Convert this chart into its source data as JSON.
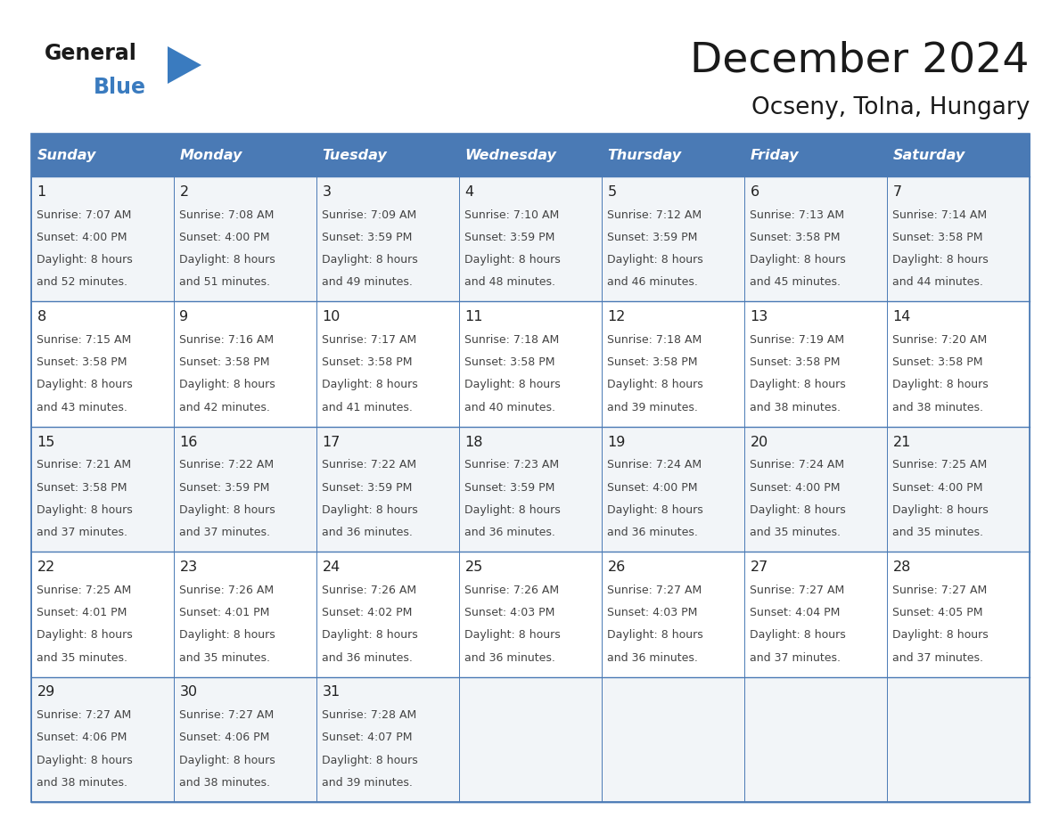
{
  "title": "December 2024",
  "subtitle": "Ocseny, Tolna, Hungary",
  "header_color": "#4a7ab5",
  "header_text_color": "#ffffff",
  "border_color": "#4a7ab5",
  "row_border_color": "#4a7ab5",
  "cell_bg_even": "#f2f5f8",
  "cell_bg_odd": "#ffffff",
  "days_of_week": [
    "Sunday",
    "Monday",
    "Tuesday",
    "Wednesday",
    "Thursday",
    "Friday",
    "Saturday"
  ],
  "weeks": [
    [
      {
        "day": 1,
        "sunrise": "7:07 AM",
        "sunset": "4:00 PM",
        "daylight_l1": "Daylight: 8 hours",
        "daylight_l2": "and 52 minutes."
      },
      {
        "day": 2,
        "sunrise": "7:08 AM",
        "sunset": "4:00 PM",
        "daylight_l1": "Daylight: 8 hours",
        "daylight_l2": "and 51 minutes."
      },
      {
        "day": 3,
        "sunrise": "7:09 AM",
        "sunset": "3:59 PM",
        "daylight_l1": "Daylight: 8 hours",
        "daylight_l2": "and 49 minutes."
      },
      {
        "day": 4,
        "sunrise": "7:10 AM",
        "sunset": "3:59 PM",
        "daylight_l1": "Daylight: 8 hours",
        "daylight_l2": "and 48 minutes."
      },
      {
        "day": 5,
        "sunrise": "7:12 AM",
        "sunset": "3:59 PM",
        "daylight_l1": "Daylight: 8 hours",
        "daylight_l2": "and 46 minutes."
      },
      {
        "day": 6,
        "sunrise": "7:13 AM",
        "sunset": "3:58 PM",
        "daylight_l1": "Daylight: 8 hours",
        "daylight_l2": "and 45 minutes."
      },
      {
        "day": 7,
        "sunrise": "7:14 AM",
        "sunset": "3:58 PM",
        "daylight_l1": "Daylight: 8 hours",
        "daylight_l2": "and 44 minutes."
      }
    ],
    [
      {
        "day": 8,
        "sunrise": "7:15 AM",
        "sunset": "3:58 PM",
        "daylight_l1": "Daylight: 8 hours",
        "daylight_l2": "and 43 minutes."
      },
      {
        "day": 9,
        "sunrise": "7:16 AM",
        "sunset": "3:58 PM",
        "daylight_l1": "Daylight: 8 hours",
        "daylight_l2": "and 42 minutes."
      },
      {
        "day": 10,
        "sunrise": "7:17 AM",
        "sunset": "3:58 PM",
        "daylight_l1": "Daylight: 8 hours",
        "daylight_l2": "and 41 minutes."
      },
      {
        "day": 11,
        "sunrise": "7:18 AM",
        "sunset": "3:58 PM",
        "daylight_l1": "Daylight: 8 hours",
        "daylight_l2": "and 40 minutes."
      },
      {
        "day": 12,
        "sunrise": "7:18 AM",
        "sunset": "3:58 PM",
        "daylight_l1": "Daylight: 8 hours",
        "daylight_l2": "and 39 minutes."
      },
      {
        "day": 13,
        "sunrise": "7:19 AM",
        "sunset": "3:58 PM",
        "daylight_l1": "Daylight: 8 hours",
        "daylight_l2": "and 38 minutes."
      },
      {
        "day": 14,
        "sunrise": "7:20 AM",
        "sunset": "3:58 PM",
        "daylight_l1": "Daylight: 8 hours",
        "daylight_l2": "and 38 minutes."
      }
    ],
    [
      {
        "day": 15,
        "sunrise": "7:21 AM",
        "sunset": "3:58 PM",
        "daylight_l1": "Daylight: 8 hours",
        "daylight_l2": "and 37 minutes."
      },
      {
        "day": 16,
        "sunrise": "7:22 AM",
        "sunset": "3:59 PM",
        "daylight_l1": "Daylight: 8 hours",
        "daylight_l2": "and 37 minutes."
      },
      {
        "day": 17,
        "sunrise": "7:22 AM",
        "sunset": "3:59 PM",
        "daylight_l1": "Daylight: 8 hours",
        "daylight_l2": "and 36 minutes."
      },
      {
        "day": 18,
        "sunrise": "7:23 AM",
        "sunset": "3:59 PM",
        "daylight_l1": "Daylight: 8 hours",
        "daylight_l2": "and 36 minutes."
      },
      {
        "day": 19,
        "sunrise": "7:24 AM",
        "sunset": "4:00 PM",
        "daylight_l1": "Daylight: 8 hours",
        "daylight_l2": "and 36 minutes."
      },
      {
        "day": 20,
        "sunrise": "7:24 AM",
        "sunset": "4:00 PM",
        "daylight_l1": "Daylight: 8 hours",
        "daylight_l2": "and 35 minutes."
      },
      {
        "day": 21,
        "sunrise": "7:25 AM",
        "sunset": "4:00 PM",
        "daylight_l1": "Daylight: 8 hours",
        "daylight_l2": "and 35 minutes."
      }
    ],
    [
      {
        "day": 22,
        "sunrise": "7:25 AM",
        "sunset": "4:01 PM",
        "daylight_l1": "Daylight: 8 hours",
        "daylight_l2": "and 35 minutes."
      },
      {
        "day": 23,
        "sunrise": "7:26 AM",
        "sunset": "4:01 PM",
        "daylight_l1": "Daylight: 8 hours",
        "daylight_l2": "and 35 minutes."
      },
      {
        "day": 24,
        "sunrise": "7:26 AM",
        "sunset": "4:02 PM",
        "daylight_l1": "Daylight: 8 hours",
        "daylight_l2": "and 36 minutes."
      },
      {
        "day": 25,
        "sunrise": "7:26 AM",
        "sunset": "4:03 PM",
        "daylight_l1": "Daylight: 8 hours",
        "daylight_l2": "and 36 minutes."
      },
      {
        "day": 26,
        "sunrise": "7:27 AM",
        "sunset": "4:03 PM",
        "daylight_l1": "Daylight: 8 hours",
        "daylight_l2": "and 36 minutes."
      },
      {
        "day": 27,
        "sunrise": "7:27 AM",
        "sunset": "4:04 PM",
        "daylight_l1": "Daylight: 8 hours",
        "daylight_l2": "and 37 minutes."
      },
      {
        "day": 28,
        "sunrise": "7:27 AM",
        "sunset": "4:05 PM",
        "daylight_l1": "Daylight: 8 hours",
        "daylight_l2": "and 37 minutes."
      }
    ],
    [
      {
        "day": 29,
        "sunrise": "7:27 AM",
        "sunset": "4:06 PM",
        "daylight_l1": "Daylight: 8 hours",
        "daylight_l2": "and 38 minutes."
      },
      {
        "day": 30,
        "sunrise": "7:27 AM",
        "sunset": "4:06 PM",
        "daylight_l1": "Daylight: 8 hours",
        "daylight_l2": "and 38 minutes."
      },
      {
        "day": 31,
        "sunrise": "7:28 AM",
        "sunset": "4:07 PM",
        "daylight_l1": "Daylight: 8 hours",
        "daylight_l2": "and 39 minutes."
      },
      null,
      null,
      null,
      null
    ]
  ],
  "logo_text_general": "General",
  "logo_text_blue": "Blue",
  "logo_color_general": "#1a1a1a",
  "logo_color_blue": "#3a7bbf",
  "logo_triangle_color": "#3a7bbf"
}
